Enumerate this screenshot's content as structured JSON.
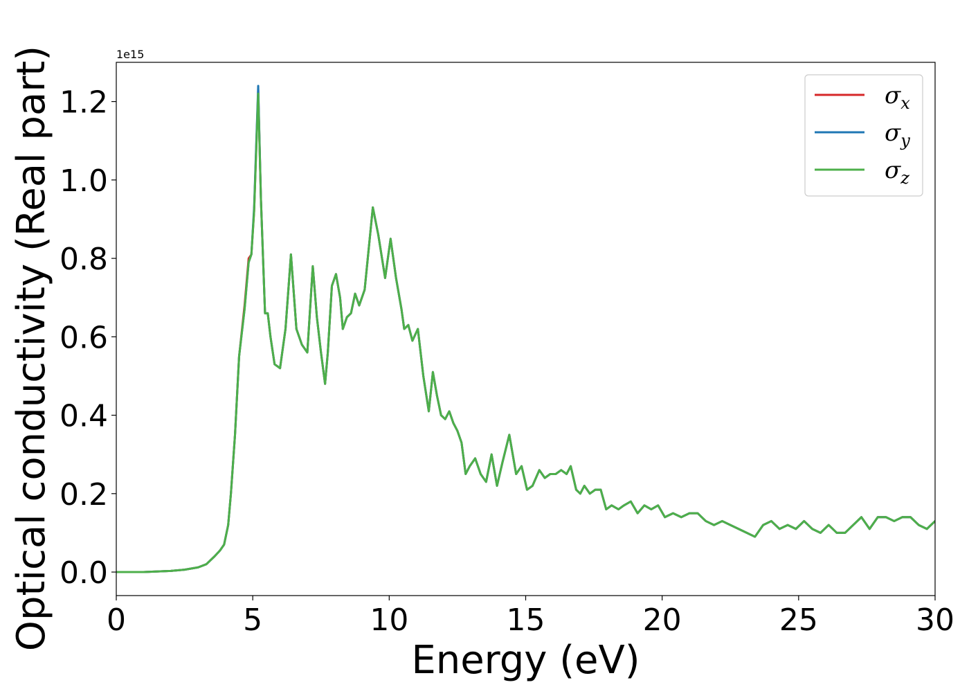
{
  "chart_data": {
    "type": "line",
    "xlabel": "Energy (eV)",
    "ylabel": "Optical conductivity (Real part)",
    "y_offset_label": "1e15",
    "y_scale": 1000000000000000.0,
    "xlim": [
      0,
      30
    ],
    "ylim": [
      -0.06,
      1.3
    ],
    "x_ticks": [
      0,
      5,
      10,
      15,
      20,
      25,
      30
    ],
    "x_tick_labels": [
      "0",
      "5",
      "10",
      "15",
      "20",
      "25",
      "30"
    ],
    "y_ticks": [
      0.0,
      0.2,
      0.4,
      0.6,
      0.8,
      1.0,
      1.2
    ],
    "y_tick_labels": [
      "0.0",
      "0.2",
      "0.4",
      "0.6",
      "0.8",
      "1.0",
      "1.2"
    ],
    "grid": false,
    "legend_position": "top-right",
    "x": [
      0,
      1,
      2,
      2.5,
      3,
      3.3,
      3.6,
      3.8,
      3.95,
      4.1,
      4.2,
      4.35,
      4.5,
      4.7,
      4.85,
      4.95,
      5.05,
      5.2,
      5.3,
      5.45,
      5.55,
      5.65,
      5.8,
      6.0,
      6.2,
      6.4,
      6.6,
      6.8,
      7.0,
      7.2,
      7.35,
      7.5,
      7.65,
      7.75,
      7.9,
      8.05,
      8.2,
      8.3,
      8.45,
      8.6,
      8.75,
      8.9,
      9.1,
      9.4,
      9.6,
      9.85,
      10.05,
      10.25,
      10.45,
      10.55,
      10.7,
      10.85,
      11.05,
      11.25,
      11.45,
      11.6,
      11.75,
      11.9,
      12.05,
      12.2,
      12.35,
      12.5,
      12.65,
      12.8,
      12.95,
      13.15,
      13.35,
      13.55,
      13.75,
      13.95,
      14.15,
      14.4,
      14.65,
      14.85,
      15.05,
      15.25,
      15.5,
      15.7,
      15.9,
      16.1,
      16.3,
      16.5,
      16.65,
      16.85,
      17.0,
      17.15,
      17.35,
      17.55,
      17.75,
      17.95,
      18.15,
      18.4,
      18.6,
      18.85,
      19.1,
      19.35,
      19.6,
      19.85,
      20.1,
      20.4,
      20.7,
      21.0,
      21.3,
      21.6,
      21.9,
      22.2,
      22.5,
      22.8,
      23.1,
      23.4,
      23.7,
      24.0,
      24.3,
      24.6,
      24.9,
      25.2,
      25.5,
      25.8,
      26.1,
      26.4,
      26.7,
      27.0,
      27.3,
      27.6,
      27.9,
      28.2,
      28.5,
      28.8,
      29.1,
      29.4,
      29.7,
      30.0
    ],
    "series": [
      {
        "name": "σ_x",
        "color": "#d62728",
        "values": [
          0.0,
          0.0,
          0.003,
          0.006,
          0.012,
          0.02,
          0.04,
          0.055,
          0.07,
          0.12,
          0.2,
          0.35,
          0.55,
          0.68,
          0.8,
          0.81,
          0.92,
          1.23,
          0.95,
          0.66,
          0.66,
          0.6,
          0.53,
          0.52,
          0.62,
          0.81,
          0.62,
          0.58,
          0.56,
          0.78,
          0.65,
          0.56,
          0.48,
          0.56,
          0.73,
          0.76,
          0.7,
          0.62,
          0.65,
          0.66,
          0.71,
          0.68,
          0.72,
          0.93,
          0.86,
          0.75,
          0.85,
          0.75,
          0.67,
          0.62,
          0.63,
          0.59,
          0.62,
          0.5,
          0.41,
          0.51,
          0.45,
          0.4,
          0.39,
          0.41,
          0.38,
          0.36,
          0.33,
          0.25,
          0.27,
          0.29,
          0.25,
          0.23,
          0.3,
          0.22,
          0.28,
          0.35,
          0.25,
          0.27,
          0.21,
          0.22,
          0.26,
          0.24,
          0.25,
          0.25,
          0.26,
          0.25,
          0.27,
          0.21,
          0.2,
          0.22,
          0.2,
          0.21,
          0.21,
          0.16,
          0.17,
          0.16,
          0.17,
          0.18,
          0.15,
          0.17,
          0.16,
          0.17,
          0.14,
          0.15,
          0.14,
          0.15,
          0.15,
          0.13,
          0.12,
          0.13,
          0.12,
          0.11,
          0.1,
          0.09,
          0.12,
          0.13,
          0.11,
          0.12,
          0.11,
          0.13,
          0.11,
          0.1,
          0.12,
          0.1,
          0.1,
          0.12,
          0.14,
          0.11,
          0.14,
          0.14,
          0.13,
          0.14,
          0.14,
          0.12,
          0.11,
          0.13
        ]
      },
      {
        "name": "σ_y",
        "color": "#1f77b4",
        "values": [
          0.0,
          0.0,
          0.003,
          0.006,
          0.012,
          0.02,
          0.04,
          0.055,
          0.07,
          0.12,
          0.2,
          0.35,
          0.55,
          0.67,
          0.79,
          0.81,
          0.93,
          1.24,
          0.95,
          0.66,
          0.66,
          0.6,
          0.53,
          0.52,
          0.62,
          0.81,
          0.62,
          0.58,
          0.56,
          0.78,
          0.65,
          0.56,
          0.48,
          0.56,
          0.73,
          0.76,
          0.7,
          0.62,
          0.65,
          0.66,
          0.71,
          0.68,
          0.72,
          0.93,
          0.86,
          0.75,
          0.85,
          0.75,
          0.67,
          0.62,
          0.63,
          0.59,
          0.62,
          0.5,
          0.41,
          0.51,
          0.45,
          0.4,
          0.39,
          0.41,
          0.38,
          0.36,
          0.33,
          0.25,
          0.27,
          0.29,
          0.25,
          0.23,
          0.3,
          0.22,
          0.28,
          0.35,
          0.25,
          0.27,
          0.21,
          0.22,
          0.26,
          0.24,
          0.25,
          0.25,
          0.26,
          0.25,
          0.27,
          0.21,
          0.2,
          0.22,
          0.2,
          0.21,
          0.21,
          0.16,
          0.17,
          0.16,
          0.17,
          0.18,
          0.15,
          0.17,
          0.16,
          0.17,
          0.14,
          0.15,
          0.14,
          0.15,
          0.15,
          0.13,
          0.12,
          0.13,
          0.12,
          0.11,
          0.1,
          0.09,
          0.12,
          0.13,
          0.11,
          0.12,
          0.11,
          0.13,
          0.11,
          0.1,
          0.12,
          0.1,
          0.1,
          0.12,
          0.14,
          0.11,
          0.14,
          0.14,
          0.13,
          0.14,
          0.14,
          0.12,
          0.11,
          0.13
        ]
      },
      {
        "name": "σ_z",
        "color": "#4daf4a",
        "values": [
          0.0,
          0.0,
          0.003,
          0.006,
          0.012,
          0.02,
          0.04,
          0.055,
          0.07,
          0.12,
          0.2,
          0.35,
          0.55,
          0.67,
          0.79,
          0.81,
          0.92,
          1.22,
          0.95,
          0.66,
          0.66,
          0.6,
          0.53,
          0.52,
          0.62,
          0.81,
          0.62,
          0.58,
          0.56,
          0.78,
          0.65,
          0.56,
          0.48,
          0.56,
          0.73,
          0.76,
          0.7,
          0.62,
          0.65,
          0.66,
          0.71,
          0.68,
          0.72,
          0.93,
          0.86,
          0.75,
          0.85,
          0.75,
          0.67,
          0.62,
          0.63,
          0.59,
          0.62,
          0.5,
          0.41,
          0.51,
          0.45,
          0.4,
          0.39,
          0.41,
          0.38,
          0.36,
          0.33,
          0.25,
          0.27,
          0.29,
          0.25,
          0.23,
          0.3,
          0.22,
          0.28,
          0.35,
          0.25,
          0.27,
          0.21,
          0.22,
          0.26,
          0.24,
          0.25,
          0.25,
          0.26,
          0.25,
          0.27,
          0.21,
          0.2,
          0.22,
          0.2,
          0.21,
          0.21,
          0.16,
          0.17,
          0.16,
          0.17,
          0.18,
          0.15,
          0.17,
          0.16,
          0.17,
          0.14,
          0.15,
          0.14,
          0.15,
          0.15,
          0.13,
          0.12,
          0.13,
          0.12,
          0.11,
          0.1,
          0.09,
          0.12,
          0.13,
          0.11,
          0.12,
          0.11,
          0.13,
          0.11,
          0.1,
          0.12,
          0.1,
          0.1,
          0.12,
          0.14,
          0.11,
          0.14,
          0.14,
          0.13,
          0.14,
          0.14,
          0.12,
          0.11,
          0.13
        ]
      }
    ],
    "legend": [
      {
        "symbol": "σ",
        "subscript": "x",
        "color": "#d62728"
      },
      {
        "symbol": "σ",
        "subscript": "y",
        "color": "#1f77b4"
      },
      {
        "symbol": "σ",
        "subscript": "z",
        "color": "#4daf4a"
      }
    ]
  }
}
